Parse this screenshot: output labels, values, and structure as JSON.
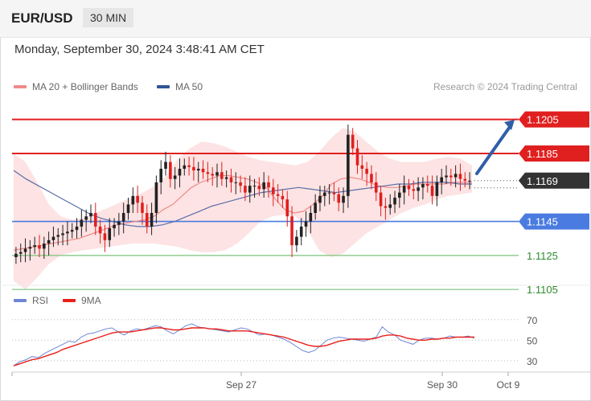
{
  "header": {
    "symbol": "EUR/USD",
    "timeframe": "30 MIN"
  },
  "datetime": "Monday, September 30, 2024 3:48:41 AM CET",
  "legend": [
    {
      "label": "MA 20 + Bollinger Bands",
      "color": "#f08a8a"
    },
    {
      "label": "MA 50",
      "color": "#2f5597"
    }
  ],
  "credit": "Research © 2024 Trading Central",
  "rsi_legend": [
    {
      "label": "RSI",
      "color": "#6f86d6"
    },
    {
      "label": "9MA",
      "color": "#e8201a"
    }
  ],
  "colors": {
    "resistance": "#e01f1f",
    "pivot": "#4a7be0",
    "support": "#7bc47b",
    "current": "#333333",
    "up_candle": "#222222",
    "down_candle": "#e01f1f",
    "band_fill": "#fde3e3",
    "arrow": "#2f5fa8"
  },
  "chart_data": [
    {
      "type": "candlestick",
      "symbol": "EUR/USD",
      "timeframe": "30 MIN",
      "x_ticks": [
        "Sep 27",
        "Sep 30",
        "Oct 9"
      ],
      "ylim": [
        1.1098,
        1.1228
      ],
      "levels": [
        {
          "label": "1.1205",
          "value": 1.1205,
          "kind": "resistance"
        },
        {
          "label": "1.1185",
          "value": 1.1185,
          "kind": "resistance"
        },
        {
          "label": "1.1169",
          "value": 1.1169,
          "kind": "current"
        },
        {
          "label": "1.1145",
          "value": 1.1145,
          "kind": "pivot"
        },
        {
          "label": "1.1125",
          "value": 1.1125,
          "kind": "support"
        },
        {
          "label": "1.1105",
          "value": 1.1105,
          "kind": "support"
        }
      ],
      "approx_close_path": [
        1.1126,
        1.1127,
        1.1129,
        1.113,
        1.1131,
        1.1129,
        1.1132,
        1.1134,
        1.1136,
        1.1137,
        1.1138,
        1.1139,
        1.114,
        1.1142,
        1.1146,
        1.1148,
        1.115,
        1.1142,
        1.1138,
        1.1134,
        1.1141,
        1.1143,
        1.1145,
        1.115,
        1.1155,
        1.116,
        1.1156,
        1.115,
        1.1142,
        1.115,
        1.1168,
        1.1176,
        1.118,
        1.117,
        1.1172,
        1.1176,
        1.1178,
        1.1177,
        1.1175,
        1.1176,
        1.1174,
        1.1173,
        1.1172,
        1.1174,
        1.117,
        1.1171,
        1.1168,
        1.1168,
        1.1166,
        1.1162,
        1.1166,
        1.1166,
        1.1164,
        1.1168,
        1.1165,
        1.1161,
        1.116,
        1.1158,
        1.1148,
        1.1131,
        1.1136,
        1.1142,
        1.1145,
        1.115,
        1.1156,
        1.116,
        1.1162,
        1.1162,
        1.1161,
        1.1156,
        1.116,
        1.1196,
        1.1188,
        1.1178,
        1.1176,
        1.1173,
        1.1168,
        1.1162,
        1.1154,
        1.1153,
        1.1155,
        1.1159,
        1.1162,
        1.1166,
        1.1164,
        1.1163,
        1.1165,
        1.1167,
        1.1166,
        1.116,
        1.1168,
        1.1171,
        1.1172,
        1.1171,
        1.1173,
        1.117,
        1.1169,
        1.1169
      ],
      "ma20": [
        1.1128,
        1.1129,
        1.113,
        1.1131,
        1.1132,
        1.1133,
        1.1134,
        1.1135,
        1.1137,
        1.1139,
        1.1141,
        1.1143,
        1.1144,
        1.1145,
        1.1146,
        1.1148,
        1.1152,
        1.1155,
        1.116,
        1.1165,
        1.1168,
        1.117,
        1.1172,
        1.1172,
        1.1171,
        1.117,
        1.1168,
        1.1165,
        1.1158,
        1.1152,
        1.115,
        1.1151,
        1.1155,
        1.116,
        1.1167,
        1.117,
        1.1171,
        1.117,
        1.1168,
        1.1166,
        1.1165,
        1.1165,
        1.1166,
        1.1167,
        1.1167,
        1.1167,
        1.1167,
        1.1168,
        1.1168,
        1.1168
      ],
      "ma50": [
        1.1175,
        1.117,
        1.1166,
        1.1162,
        1.1158,
        1.1154,
        1.115,
        1.1147,
        1.1145,
        1.1143,
        1.1142,
        1.1142,
        1.1143,
        1.1145,
        1.1148,
        1.1151,
        1.1154,
        1.1156,
        1.1158,
        1.116,
        1.1162,
        1.1163,
        1.1164,
        1.1165,
        1.1164,
        1.1163,
        1.1162,
        1.1163,
        1.1164,
        1.1165,
        1.1166,
        1.1167,
        1.1167,
        1.1168,
        1.1168,
        1.1168,
        1.1167,
        1.1167
      ],
      "bb_upper": [
        1.1185,
        1.118,
        1.1168,
        1.1155,
        1.1148,
        1.1146,
        1.1147,
        1.115,
        1.1153,
        1.1156,
        1.1159,
        1.1162,
        1.1166,
        1.1172,
        1.1182,
        1.1188,
        1.1192,
        1.1191,
        1.1189,
        1.1186,
        1.1183,
        1.1181,
        1.118,
        1.1179,
        1.1178,
        1.118,
        1.1186,
        1.1194,
        1.12,
        1.1198,
        1.1192,
        1.1186,
        1.1182,
        1.118,
        1.118,
        1.118,
        1.1182,
        1.1183,
        1.1182,
        1.1178
      ],
      "bb_lower": [
        1.111,
        1.1105,
        1.1112,
        1.112,
        1.1125,
        1.1127,
        1.1128,
        1.1129,
        1.113,
        1.1131,
        1.1132,
        1.1132,
        1.1132,
        1.1131,
        1.113,
        1.1128,
        1.1127,
        1.1127,
        1.1128,
        1.1132,
        1.1138,
        1.1145,
        1.1148,
        1.1149,
        1.1148,
        1.114,
        1.1128,
        1.1124,
        1.1126,
        1.1132,
        1.1138,
        1.1142,
        1.1146,
        1.115,
        1.1153,
        1.1155,
        1.1158,
        1.116,
        1.1161,
        1.1162
      ]
    },
    {
      "type": "line",
      "indicator": "RSI",
      "series": [
        {
          "name": "RSI",
          "values": [
            25,
            29,
            31,
            34,
            33,
            37,
            40,
            43,
            46,
            49,
            48,
            53,
            56,
            57,
            59,
            61,
            62,
            58,
            55,
            59,
            61,
            60,
            62,
            64,
            63,
            59,
            56,
            60,
            64,
            66,
            63,
            62,
            61,
            60,
            59,
            58,
            60,
            62,
            61,
            58,
            55,
            56,
            55,
            53,
            51,
            48,
            44,
            40,
            38,
            40,
            45,
            50,
            52,
            53,
            52,
            51,
            50,
            49,
            51,
            53,
            63,
            58,
            55,
            50,
            48,
            46,
            50,
            52,
            52,
            51,
            52,
            54,
            53,
            53,
            54,
            52
          ]
        },
        {
          "name": "9MA",
          "values": [
            25,
            27,
            29,
            31,
            32,
            34,
            36,
            38,
            41,
            43,
            45,
            47,
            49,
            51,
            53,
            55,
            57,
            58,
            58,
            58,
            59,
            60,
            61,
            62,
            62,
            61,
            60,
            60,
            61,
            62,
            62,
            62,
            61,
            61,
            60,
            59,
            59,
            59,
            59,
            58,
            57,
            56,
            55,
            54,
            53,
            51,
            49,
            47,
            45,
            44,
            44,
            45,
            47,
            49,
            50,
            51,
            51,
            51,
            51,
            52,
            54,
            55,
            55,
            54,
            52,
            51,
            50,
            50,
            51,
            51,
            52,
            52,
            53,
            53,
            53,
            53
          ]
        }
      ],
      "yticks": [
        30,
        50,
        70
      ],
      "ylim": [
        15,
        80
      ]
    }
  ]
}
